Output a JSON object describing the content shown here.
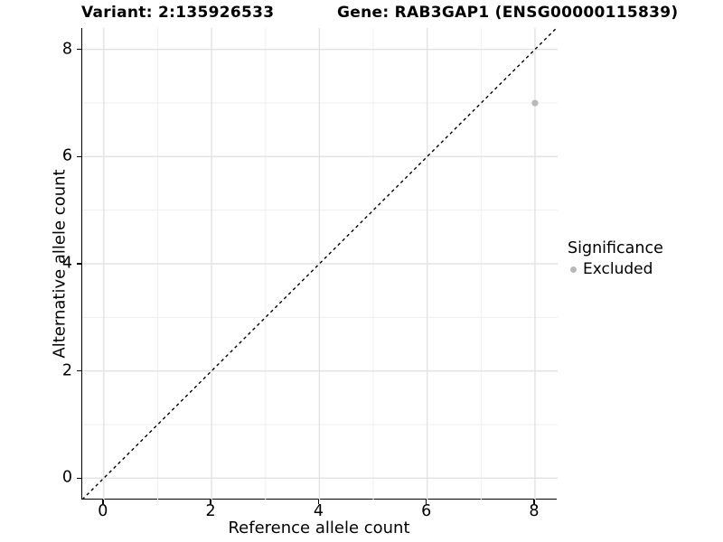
{
  "chart_data": {
    "type": "scatter",
    "title_left": "Variant: 2:135926533",
    "title_right": "Gene: RAB3GAP1 (ENSG00000115839)",
    "xlabel": "Reference allele count",
    "ylabel": "Alternative allele count",
    "xlim": [
      -0.4,
      8.42
    ],
    "ylim": [
      -0.4,
      8.4
    ],
    "x_ticks": [
      0,
      2,
      4,
      6,
      8
    ],
    "y_ticks": [
      0,
      2,
      4,
      6,
      8
    ],
    "x_minor_ticks": [
      1,
      3,
      5,
      7
    ],
    "y_minor_ticks": [
      1,
      3,
      5,
      7
    ],
    "grid": true,
    "identity_line": {
      "slope": 1,
      "intercept": 0,
      "style": "dashed",
      "color": "#000000"
    },
    "points": [
      {
        "x": 8,
        "y": 7,
        "series": "Excluded"
      }
    ],
    "legend": {
      "title": "Significance",
      "position": "right",
      "entries": [
        {
          "label": "Excluded",
          "color": "#b8b8b8"
        }
      ]
    },
    "colors": {
      "point": "#b8b8b8",
      "grid_major": "#e3e3e3",
      "grid_minor": "#efefef",
      "axis": "#000000",
      "background": "#ffffff"
    }
  }
}
